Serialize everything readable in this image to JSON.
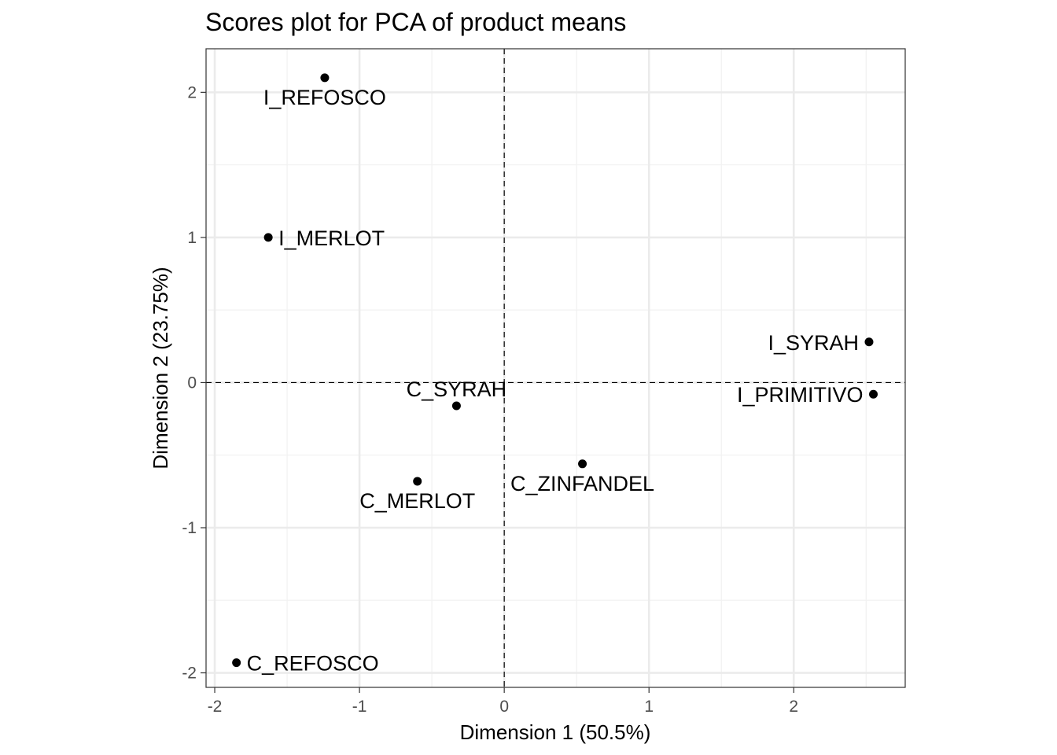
{
  "chart_data": {
    "type": "scatter",
    "title": "Scores plot for PCA of product means",
    "xlabel": "Dimension 1 (50.5%)",
    "ylabel": "Dimension 2 (23.75%)",
    "xlim": [
      -2.06,
      2.77
    ],
    "ylim": [
      -2.1,
      2.3
    ],
    "x_ticks": [
      -2,
      -1,
      0,
      1,
      2
    ],
    "y_ticks": [
      -2,
      -1,
      0,
      1,
      2
    ],
    "x_tick_labels": [
      "-2",
      "-1",
      "0",
      "1",
      "2"
    ],
    "y_tick_labels": [
      "-2",
      "-1",
      "0",
      "1",
      "2"
    ],
    "reference_lines": {
      "x": 0,
      "y": 0,
      "style": "dashed"
    },
    "grid": true,
    "colors": {
      "panel_border": "#333333",
      "grid_major": "#ebebeb",
      "grid_minor": "#f2f2f2",
      "point": "#000000",
      "tick_text": "#4d4d4d"
    },
    "points": [
      {
        "label": "I_REFOSCO",
        "x": -1.24,
        "y": 2.1,
        "label_pos": "below"
      },
      {
        "label": "I_MERLOT",
        "x": -1.63,
        "y": 1.0,
        "label_pos": "right"
      },
      {
        "label": "I_SYRAH",
        "x": 2.52,
        "y": 0.28,
        "label_pos": "left"
      },
      {
        "label": "I_PRIMITIVO",
        "x": 2.55,
        "y": -0.08,
        "label_pos": "left"
      },
      {
        "label": "C_SYRAH",
        "x": -0.33,
        "y": -0.16,
        "label_pos": "above"
      },
      {
        "label": "C_ZINFANDEL",
        "x": 0.54,
        "y": -0.56,
        "label_pos": "below"
      },
      {
        "label": "C_MERLOT",
        "x": -0.6,
        "y": -0.68,
        "label_pos": "below"
      },
      {
        "label": "C_REFOSCO",
        "x": -1.85,
        "y": -1.93,
        "label_pos": "right"
      }
    ]
  }
}
